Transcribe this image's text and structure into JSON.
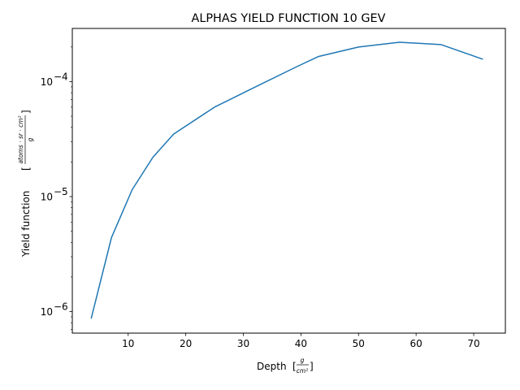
{
  "chart_data": {
    "type": "line",
    "title": "ALPHAS YIELD FUNCTION 10 GEV",
    "xlabel": {
      "text": "Depth",
      "unit_numerator": "g",
      "unit_denominator": "cm²"
    },
    "ylabel": {
      "text": "Yield function",
      "unit_numerator": "atoms · sr · cm²",
      "unit_denominator": "g"
    },
    "yscale": "log",
    "xlim": [
      0.3,
      75.5
    ],
    "ylim": [
      6.5e-07,
      0.00029
    ],
    "x_ticks": [
      10,
      20,
      30,
      40,
      50,
      60,
      70
    ],
    "y_ticks": [
      {
        "value": 1e-06,
        "base": "10",
        "exp": "−6"
      },
      {
        "value": 1e-05,
        "base": "10",
        "exp": "−5"
      },
      {
        "value": 0.0001,
        "base": "10",
        "exp": "−4"
      }
    ],
    "grid": false,
    "color": "#1f77b4",
    "series": [
      {
        "x": [
          3.6,
          7.1,
          10.7,
          14.3,
          17.9,
          25.0,
          32.1,
          39.3,
          43.0,
          50.0,
          57.1,
          64.3,
          71.5
        ],
        "y": [
          8.8e-07,
          4.4e-06,
          1.15e-05,
          2.2e-05,
          3.5e-05,
          6e-05,
          9e-05,
          0.000135,
          0.000165,
          0.0002,
          0.00022,
          0.00021,
          0.000157
        ]
      }
    ]
  }
}
